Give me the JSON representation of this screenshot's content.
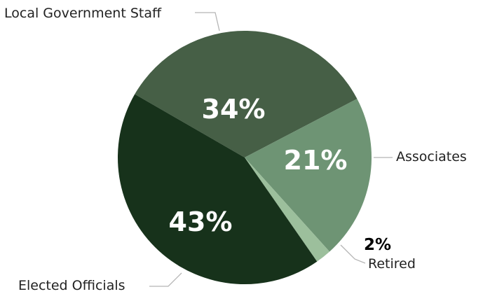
{
  "chart_data": {
    "type": "pie",
    "slices": [
      {
        "label": "Local Government Staff",
        "value": 34,
        "value_label": "34%",
        "color": "#465f46"
      },
      {
        "label": "Associates",
        "value": 21,
        "value_label": "21%",
        "color": "#6e9474"
      },
      {
        "label": "Retired",
        "value": 2,
        "value_label": "2%",
        "color": "#9cbf9c"
      },
      {
        "label": "Elected Officials",
        "value": 43,
        "value_label": "43%",
        "color": "#17321b"
      }
    ],
    "legend": "none",
    "title": ""
  }
}
